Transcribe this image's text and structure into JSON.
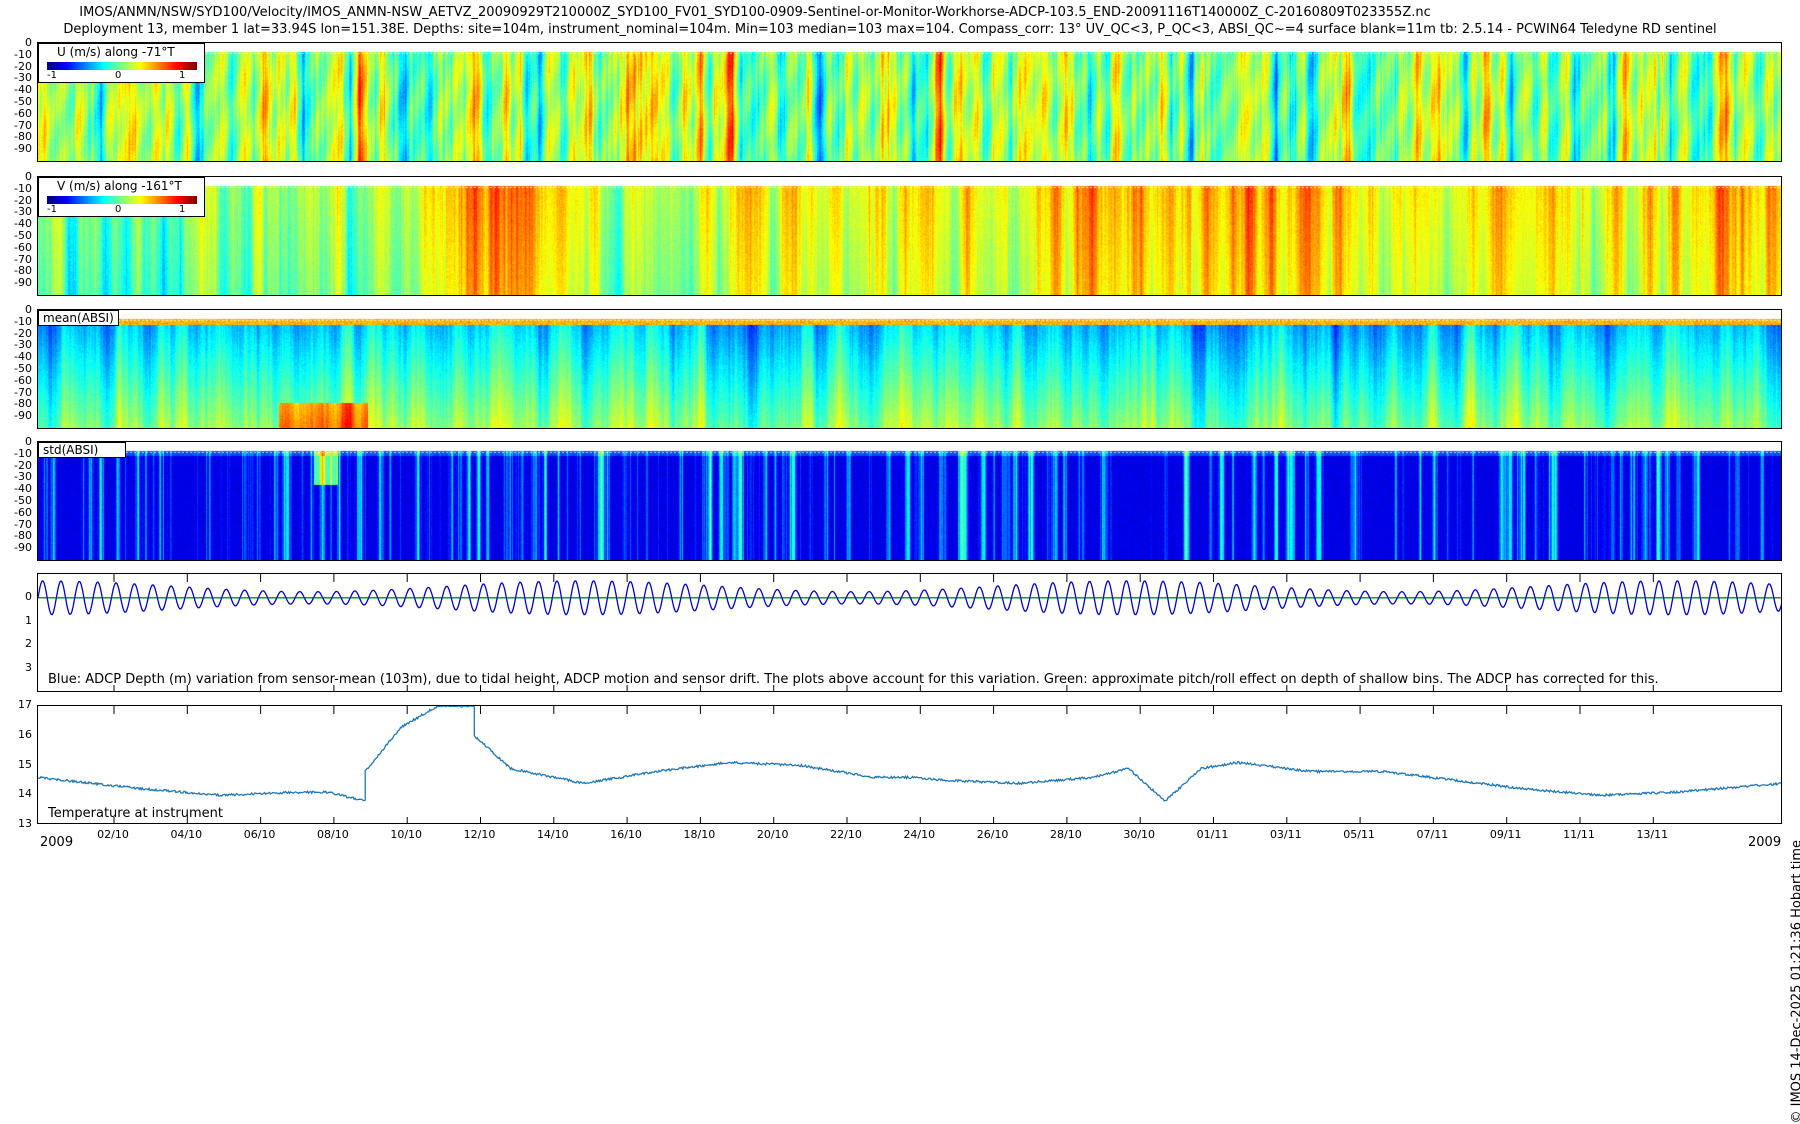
{
  "header": {
    "title_line1": "IMOS/ANMN/NSW/SYD100/Velocity/IMOS_ANMN-NSW_AETVZ_20090929T210000Z_SYD100_FV01_SYD100-0909-Sentinel-or-Monitor-Workhorse-ADCP-103.5_END-20091116T140000Z_C-20160809T023355Z.nc",
    "title_line2": "Deployment 13, member 1 lat=33.94S lon=151.38E. Depths: site=104m, instrument_nominal=104m. Min=103 median=103 max=104. Compass_corr: 13° UV_QC<3, P_QC<3, ABSI_QC~=4 surface blank=11m tb: 2.5.14 - PCWIN64 Teledyne RD sentinel"
  },
  "side_label": "© IMOS 14-Dec-2025 01:21:36 Hobart time",
  "chart_data": [
    {
      "type": "heatmap",
      "legend": "U (m/s) along -71°T",
      "colorbar_ticks": [
        "-1",
        "0",
        "1"
      ],
      "clim": [
        -1.3,
        1.3
      ],
      "yticks": [
        "0",
        "-10",
        "-20",
        "-30",
        "-40",
        "-50",
        "-60",
        "-70",
        "-80",
        "-90"
      ],
      "ylim": [
        0,
        -97
      ]
    },
    {
      "type": "heatmap",
      "legend": "V (m/s) along -161°T",
      "colorbar_ticks": [
        "-1",
        "0",
        "1"
      ],
      "clim": [
        -1.3,
        1.3
      ],
      "yticks": [
        "0",
        "-10",
        "-20",
        "-30",
        "-40",
        "-50",
        "-60",
        "-70",
        "-80",
        "-90"
      ],
      "ylim": [
        0,
        -97
      ]
    },
    {
      "type": "heatmap",
      "legend": "mean(ABSI)",
      "yticks": [
        "0",
        "-10",
        "-20",
        "-30",
        "-40",
        "-50",
        "-60",
        "-70",
        "-80",
        "-90"
      ],
      "ylim": [
        0,
        -97
      ]
    },
    {
      "type": "heatmap",
      "legend": "std(ABSI)",
      "yticks": [
        "0",
        "-10",
        "-20",
        "-30",
        "-40",
        "-50",
        "-60",
        "-70",
        "-80",
        "-90"
      ],
      "ylim": [
        0,
        -97
      ]
    },
    {
      "type": "line",
      "annotation": "Blue: ADCP Depth (m) variation from sensor-mean (103m), due to tidal height, ADCP motion and sensor drift. The plots above account for this variation. Green: approximate pitch/roll effect on depth of shallow bins. The ADCP has corrected for this.",
      "yticks": [
        "0",
        "1",
        "2",
        "3"
      ],
      "ylim": [
        -1,
        4
      ],
      "series": [
        {
          "color": "#0000cc",
          "amplitude": 0.65,
          "tidal_cycles": 95
        },
        {
          "color": "#00aa00",
          "value": 0.0
        }
      ]
    },
    {
      "type": "line",
      "annotation": "Temperature at instrument",
      "yticks": [
        "17",
        "16",
        "15",
        "14",
        "13"
      ],
      "ylim": [
        13,
        17
      ],
      "x": [
        "2009-09-29",
        "2009-10-02",
        "2009-10-04",
        "2009-10-06",
        "2009-10-07",
        "2009-10-08",
        "2009-10-08",
        "2009-10-09",
        "2009-10-10",
        "2009-10-11",
        "2009-10-11",
        "2009-10-12",
        "2009-10-14",
        "2009-10-16",
        "2009-10-18",
        "2009-10-20",
        "2009-10-21",
        "2009-10-22",
        "2009-10-23",
        "2009-10-24",
        "2009-10-26",
        "2009-10-28",
        "2009-10-29",
        "2009-10-30",
        "2009-10-31",
        "2009-11-01",
        "2009-11-03",
        "2009-11-05",
        "2009-11-07",
        "2009-11-09",
        "2009-11-11",
        "2009-11-13",
        "2009-11-15",
        "2009-11-16"
      ],
      "y": [
        14.6,
        14.2,
        14.0,
        14.1,
        14.1,
        13.8,
        14.8,
        16.3,
        17.0,
        17.0,
        16.0,
        14.9,
        14.4,
        14.8,
        15.1,
        15.0,
        14.8,
        14.6,
        14.6,
        14.5,
        14.4,
        14.6,
        14.9,
        13.8,
        14.9,
        15.1,
        14.8,
        14.8,
        14.5,
        14.2,
        14.0,
        14.1,
        14.3,
        14.4
      ],
      "series": [
        {
          "color": "#1f77b4"
        }
      ],
      "xtick_labels": [
        "2009",
        "02/10",
        "04/10",
        "06/10",
        "08/10",
        "10/10",
        "12/10",
        "14/10",
        "16/10",
        "18/10",
        "20/10",
        "22/10",
        "24/10",
        "26/10",
        "28/10",
        "30/10",
        "01/11",
        "03/11",
        "05/11",
        "07/11",
        "09/11",
        "11/11",
        "13/11",
        "2009"
      ]
    }
  ]
}
